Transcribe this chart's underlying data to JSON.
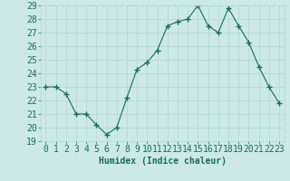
{
  "x": [
    0,
    1,
    2,
    3,
    4,
    5,
    6,
    7,
    8,
    9,
    10,
    11,
    12,
    13,
    14,
    15,
    16,
    17,
    18,
    19,
    20,
    21,
    22,
    23
  ],
  "y": [
    23.0,
    23.0,
    22.5,
    21.0,
    21.0,
    20.2,
    19.5,
    20.0,
    22.2,
    24.3,
    24.8,
    25.7,
    27.5,
    27.8,
    28.0,
    29.0,
    27.5,
    27.0,
    28.8,
    27.5,
    26.3,
    24.5,
    23.0,
    21.8
  ],
  "xlabel": "Humidex (Indice chaleur)",
  "xlim": [
    -0.5,
    23.5
  ],
  "ylim": [
    19,
    29
  ],
  "yticks": [
    19,
    20,
    21,
    22,
    23,
    24,
    25,
    26,
    27,
    28,
    29
  ],
  "xticks": [
    0,
    1,
    2,
    3,
    4,
    5,
    6,
    7,
    8,
    9,
    10,
    11,
    12,
    13,
    14,
    15,
    16,
    17,
    18,
    19,
    20,
    21,
    22,
    23
  ],
  "line_color": "#1a6b5a",
  "marker": "+",
  "marker_size": 4,
  "bg_color": "#cce8e8",
  "grid_color": "#b0d8d8",
  "tick_color": "#1a6b5a",
  "label_fontsize": 7,
  "xlabel_fontsize": 7
}
